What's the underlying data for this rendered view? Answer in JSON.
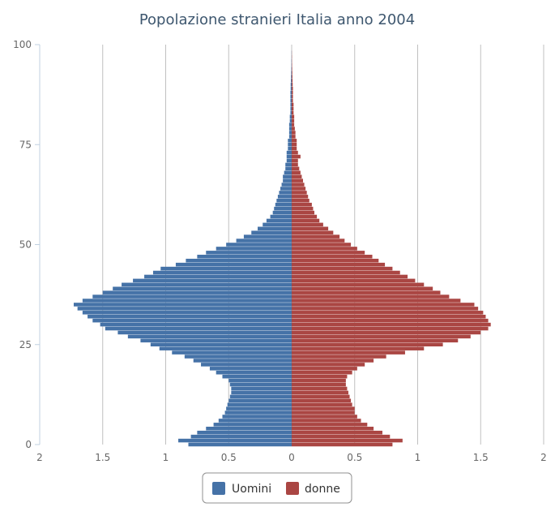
{
  "chart_data": {
    "type": "bar",
    "orientation": "horizontal-population-pyramid",
    "title": "Popolazione stranieri Italia anno 2004",
    "xlabel": "",
    "ylabel": "",
    "xlim": [
      -2,
      2
    ],
    "ylim": [
      0,
      100
    ],
    "x_tick_values": [
      -2,
      -1.5,
      -1,
      -0.5,
      0,
      0.5,
      1,
      1.5,
      2
    ],
    "x_tick_labels": [
      "2",
      "1.5",
      "1",
      "0.5",
      "0",
      "0.5",
      "1",
      "1.5",
      "2"
    ],
    "y_tick_values": [
      0,
      25,
      50,
      75,
      100
    ],
    "y_tick_labels": [
      "0",
      "25",
      "50",
      "75",
      "100"
    ],
    "grid": "vertical",
    "legend_position": "bottom-center",
    "ages": [
      0,
      1,
      2,
      3,
      4,
      5,
      6,
      7,
      8,
      9,
      10,
      11,
      12,
      13,
      14,
      15,
      16,
      17,
      18,
      19,
      20,
      21,
      22,
      23,
      24,
      25,
      26,
      27,
      28,
      29,
      30,
      31,
      32,
      33,
      34,
      35,
      36,
      37,
      38,
      39,
      40,
      41,
      42,
      43,
      44,
      45,
      46,
      47,
      48,
      49,
      50,
      51,
      52,
      53,
      54,
      55,
      56,
      57,
      58,
      59,
      60,
      61,
      62,
      63,
      64,
      65,
      66,
      67,
      68,
      69,
      70,
      71,
      72,
      73,
      74,
      75,
      76,
      77,
      78,
      79,
      80,
      81,
      82,
      83,
      84,
      85,
      86,
      87,
      88,
      89,
      90,
      91,
      92,
      93,
      94,
      95,
      96,
      97,
      98,
      99,
      100
    ],
    "series": [
      {
        "name": "Uomini",
        "color": "#4572a7",
        "values": [
          0.82,
          0.9,
          0.8,
          0.75,
          0.68,
          0.62,
          0.58,
          0.55,
          0.53,
          0.52,
          0.51,
          0.5,
          0.49,
          0.48,
          0.48,
          0.49,
          0.5,
          0.55,
          0.6,
          0.65,
          0.72,
          0.78,
          0.85,
          0.95,
          1.05,
          1.12,
          1.2,
          1.3,
          1.38,
          1.48,
          1.52,
          1.58,
          1.62,
          1.66,
          1.7,
          1.73,
          1.66,
          1.58,
          1.5,
          1.42,
          1.35,
          1.26,
          1.17,
          1.1,
          1.04,
          0.92,
          0.84,
          0.75,
          0.68,
          0.6,
          0.52,
          0.44,
          0.38,
          0.32,
          0.27,
          0.23,
          0.2,
          0.17,
          0.15,
          0.14,
          0.13,
          0.12,
          0.11,
          0.1,
          0.09,
          0.08,
          0.07,
          0.07,
          0.06,
          0.05,
          0.05,
          0.04,
          0.04,
          0.04,
          0.03,
          0.03,
          0.03,
          0.02,
          0.02,
          0.02,
          0.02,
          0.015,
          0.015,
          0.01,
          0.01,
          0.01,
          0.01,
          0.01,
          0.01,
          0.008,
          0.008,
          0.006,
          0.005,
          0.004,
          0.003,
          0.002,
          0.002,
          0.001,
          0.001,
          0,
          0
        ]
      },
      {
        "name": "donne",
        "color": "#aa4643",
        "values": [
          0.8,
          0.88,
          0.78,
          0.72,
          0.65,
          0.6,
          0.55,
          0.52,
          0.5,
          0.5,
          0.48,
          0.47,
          0.46,
          0.45,
          0.44,
          0.43,
          0.43,
          0.44,
          0.48,
          0.52,
          0.58,
          0.65,
          0.75,
          0.9,
          1.05,
          1.2,
          1.32,
          1.42,
          1.5,
          1.56,
          1.58,
          1.56,
          1.54,
          1.52,
          1.48,
          1.45,
          1.34,
          1.25,
          1.18,
          1.12,
          1.05,
          0.98,
          0.92,
          0.86,
          0.8,
          0.74,
          0.69,
          0.64,
          0.58,
          0.52,
          0.47,
          0.42,
          0.38,
          0.33,
          0.29,
          0.25,
          0.22,
          0.2,
          0.18,
          0.17,
          0.16,
          0.14,
          0.13,
          0.12,
          0.11,
          0.1,
          0.09,
          0.08,
          0.07,
          0.06,
          0.05,
          0.05,
          0.07,
          0.05,
          0.04,
          0.04,
          0.04,
          0.03,
          0.03,
          0.025,
          0.02,
          0.02,
          0.02,
          0.015,
          0.015,
          0.015,
          0.01,
          0.01,
          0.01,
          0.01,
          0.008,
          0.007,
          0.006,
          0.005,
          0.004,
          0.003,
          0.002,
          0.002,
          0.001,
          0,
          0
        ]
      }
    ]
  },
  "colors": {
    "title": "#3e576f",
    "grid": "#c0c0c0",
    "axis": "#c0d0e0",
    "legend_border": "#909090"
  }
}
